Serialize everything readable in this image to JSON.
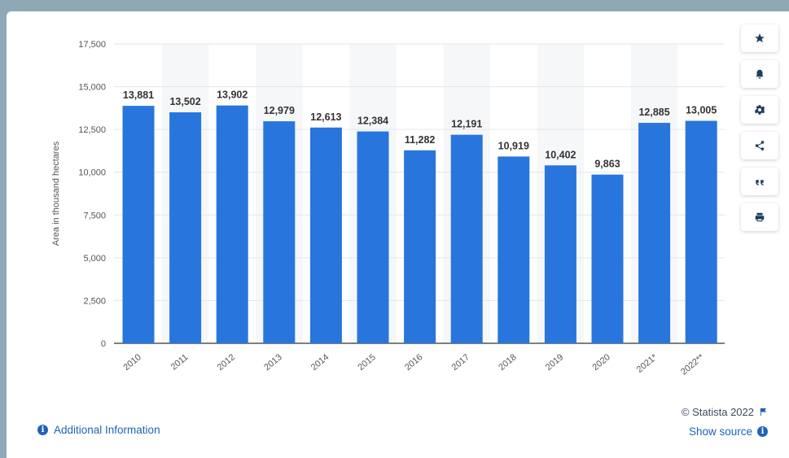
{
  "chart_data": {
    "type": "bar",
    "categories": [
      "2010",
      "2011",
      "2012",
      "2013",
      "2014",
      "2015",
      "2016",
      "2017",
      "2018",
      "2019",
      "2020",
      "2021*",
      "2022**"
    ],
    "values": [
      13881,
      13502,
      13902,
      12979,
      12613,
      12384,
      11282,
      12191,
      10919,
      10402,
      9863,
      12885,
      13005
    ],
    "value_labels": [
      "13,881",
      "13,502",
      "13,902",
      "12,979",
      "12,613",
      "12,384",
      "11,282",
      "12,191",
      "10,919",
      "10,402",
      "9,863",
      "12,885",
      "13,005"
    ],
    "ylabel": "Area in thousand hectares",
    "ylim": [
      0,
      17500
    ],
    "yticks": [
      0,
      2500,
      5000,
      7500,
      10000,
      12500,
      15000,
      17500
    ],
    "ytick_labels": [
      "0",
      "2,500",
      "5,000",
      "7,500",
      "10,000",
      "12,500",
      "15,000",
      "17,500"
    ],
    "bar_color": "#2876dd",
    "grid": true
  },
  "sidebar": {
    "buttons": [
      {
        "name": "favorite-button",
        "icon": "star-icon"
      },
      {
        "name": "notification-button",
        "icon": "bell-icon"
      },
      {
        "name": "settings-button",
        "icon": "gear-icon"
      },
      {
        "name": "share-button",
        "icon": "share-icon"
      },
      {
        "name": "cite-button",
        "icon": "quote-icon"
      },
      {
        "name": "print-button",
        "icon": "print-icon"
      }
    ]
  },
  "footer": {
    "additional_info": "Additional Information",
    "credit": "© Statista 2022",
    "show_source": "Show source"
  }
}
